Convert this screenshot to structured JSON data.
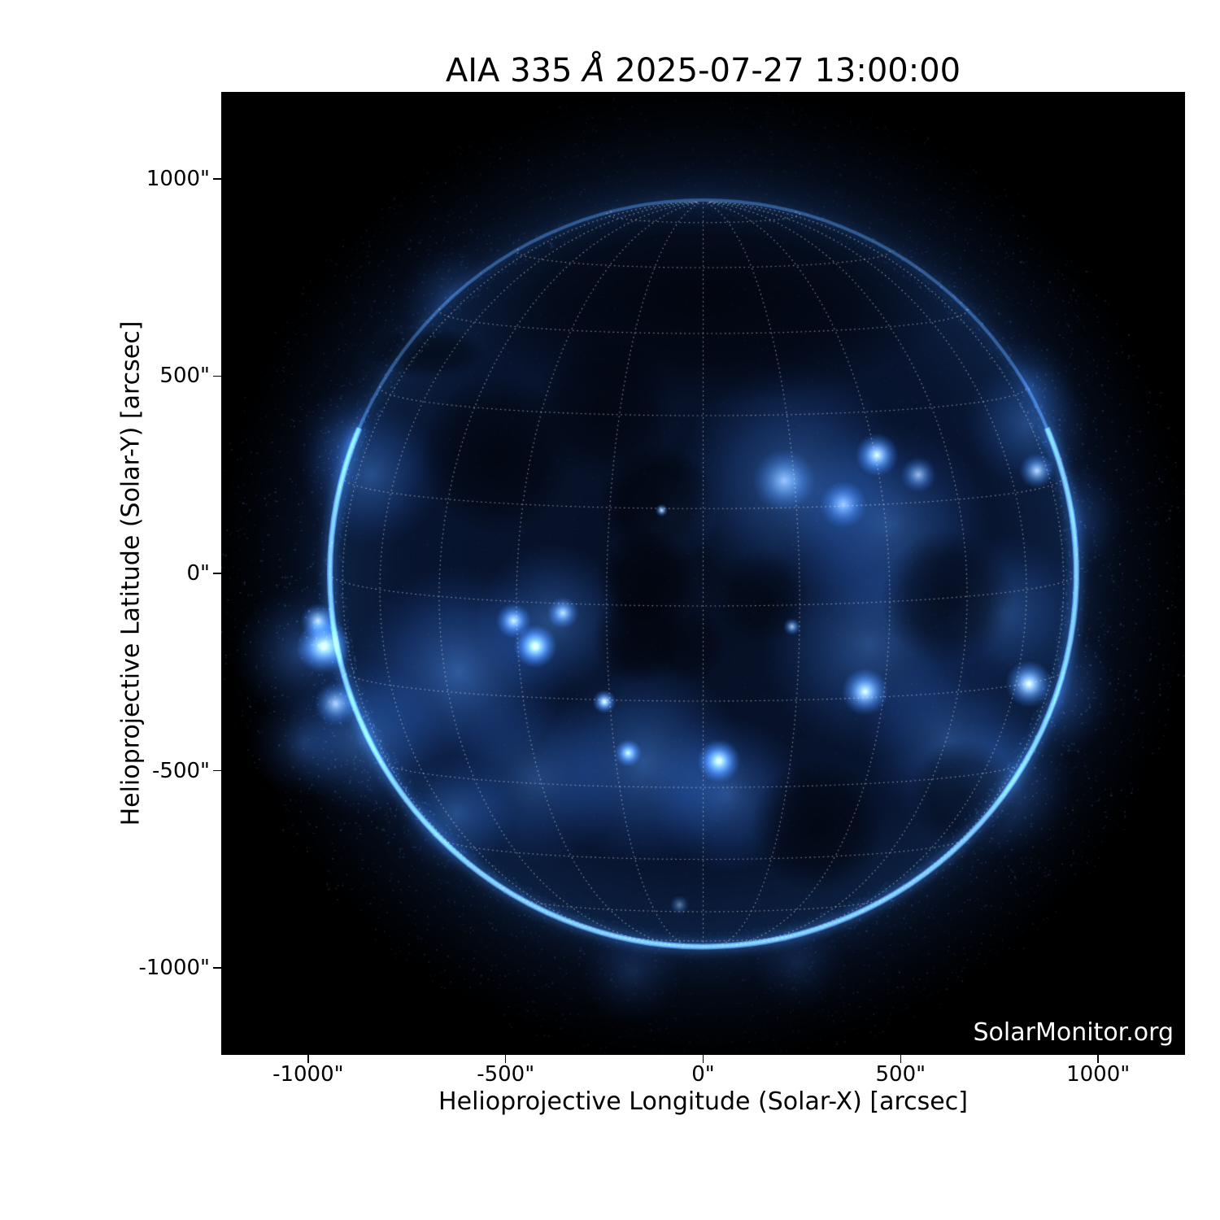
{
  "title": {
    "prefix": "AIA 335 ",
    "angstrom": "Å",
    "suffix": " 2025-07-27 13:00:00",
    "full": "AIA 335 Å 2025-07-27 13:00:00"
  },
  "watermark": "SolarMonitor.org",
  "axes": {
    "xlabel": "Helioprojective Longitude (Solar-X) [arcsec]",
    "ylabel": "Helioprojective Latitude (Solar-Y) [arcsec]",
    "xlim": [
      -1220,
      1220
    ],
    "ylim": [
      -1220,
      1220
    ],
    "xticks": [
      {
        "v": -1000,
        "label": "-1000\""
      },
      {
        "v": -500,
        "label": "-500\""
      },
      {
        "v": 0,
        "label": "0\""
      },
      {
        "v": 500,
        "label": "500\""
      },
      {
        "v": 1000,
        "label": "1000\""
      }
    ],
    "yticks": [
      {
        "v": 1000,
        "label": "1000\""
      },
      {
        "v": 500,
        "label": "500\""
      },
      {
        "v": 0,
        "label": "0\""
      },
      {
        "v": -500,
        "label": "-500\""
      },
      {
        "v": -1000,
        "label": "-1000\""
      }
    ]
  },
  "chart_data": {
    "type": "heatmap",
    "description": "SDO/AIA 335 Å extreme-ultraviolet image of the solar corona (blue colormap) with dotted heliographic Stonyhurst grid overlay, as served by SolarMonitor.org",
    "instrument": "AIA",
    "wavelength_label": "335 Å",
    "observation_time": "2025-07-27 13:00:00",
    "sun": {
      "center_arcsec": [
        0,
        0
      ],
      "radius_arcsec": 945,
      "b0_deg": 5,
      "grid_step_deg": 15
    },
    "palette": {
      "background": "#000000",
      "disk_dark": "#060f22",
      "corona_faint": "#123a6e",
      "corona_mid": "#2e6aa8",
      "corona_bright": "#8fc0e8",
      "core_white": "#f0f8ff",
      "grid": "#ffffff",
      "text": "#000000",
      "watermark_text": "#ffffff"
    },
    "clouds": [
      {
        "x": -620,
        "y": -250,
        "r": 270,
        "a": 0.55
      },
      {
        "x": -380,
        "y": -120,
        "r": 200,
        "a": 0.45
      },
      {
        "x": -150,
        "y": -480,
        "r": 260,
        "a": 0.5
      },
      {
        "x": -420,
        "y": -520,
        "r": 220,
        "a": 0.4
      },
      {
        "x": 60,
        "y": -560,
        "r": 200,
        "a": 0.45
      },
      {
        "x": 230,
        "y": 230,
        "r": 300,
        "a": 0.5
      },
      {
        "x": 470,
        "y": 120,
        "r": 260,
        "a": 0.45
      },
      {
        "x": 420,
        "y": -180,
        "r": 280,
        "a": 0.45
      },
      {
        "x": 620,
        "y": -420,
        "r": 220,
        "a": 0.4
      },
      {
        "x": 760,
        "y": -100,
        "r": 200,
        "a": 0.4
      },
      {
        "x": 760,
        "y": -540,
        "r": 180,
        "a": 0.35
      },
      {
        "x": -840,
        "y": 250,
        "r": 180,
        "a": 0.4
      },
      {
        "x": -860,
        "y": -420,
        "r": 200,
        "a": 0.45
      },
      {
        "x": 820,
        "y": 380,
        "r": 160,
        "a": 0.35
      },
      {
        "x": -80,
        "y": 150,
        "r": 120,
        "a": 0.3
      },
      {
        "x": -625,
        "y": -608,
        "r": 150,
        "a": 0.4
      }
    ],
    "active_regions": [
      {
        "x": -960,
        "y": -185,
        "r": 70,
        "i": 1.0
      },
      {
        "x": -975,
        "y": -120,
        "r": 45,
        "i": 0.8
      },
      {
        "x": -930,
        "y": -330,
        "r": 55,
        "i": 0.7
      },
      {
        "x": -425,
        "y": -185,
        "r": 55,
        "i": 1.0
      },
      {
        "x": -480,
        "y": -120,
        "r": 45,
        "i": 0.8
      },
      {
        "x": -355,
        "y": -100,
        "r": 40,
        "i": 0.7
      },
      {
        "x": -250,
        "y": -325,
        "r": 30,
        "i": 1.0
      },
      {
        "x": -190,
        "y": -455,
        "r": 35,
        "i": 0.8
      },
      {
        "x": 40,
        "y": -475,
        "r": 55,
        "i": 0.95
      },
      {
        "x": -105,
        "y": 160,
        "r": 16,
        "i": 0.9
      },
      {
        "x": 205,
        "y": 235,
        "r": 80,
        "i": 0.5
      },
      {
        "x": 355,
        "y": 175,
        "r": 60,
        "i": 0.55
      },
      {
        "x": 440,
        "y": 300,
        "r": 55,
        "i": 0.9
      },
      {
        "x": 545,
        "y": 250,
        "r": 45,
        "i": 0.6
      },
      {
        "x": 410,
        "y": -300,
        "r": 60,
        "i": 0.9
      },
      {
        "x": 225,
        "y": -135,
        "r": 22,
        "i": 0.7
      },
      {
        "x": 825,
        "y": -280,
        "r": 60,
        "i": 1.0
      },
      {
        "x": 845,
        "y": 260,
        "r": 45,
        "i": 0.75
      },
      {
        "x": -60,
        "y": -840,
        "r": 25,
        "i": 0.4
      }
    ],
    "dark_regions": [
      {
        "x": 0,
        "y": 700,
        "r": 420,
        "a": 0.85,
        "sx": 1.5,
        "sy": 0.65
      },
      {
        "x": -120,
        "y": 180,
        "r": 150,
        "a": 0.8,
        "sx": 1,
        "sy": 1
      },
      {
        "x": -140,
        "y": -20,
        "r": 130,
        "a": 0.8,
        "sx": 1,
        "sy": 1
      },
      {
        "x": -160,
        "y": -160,
        "r": 120,
        "a": 0.7,
        "sx": 1,
        "sy": 1
      },
      {
        "x": -520,
        "y": 300,
        "r": 200,
        "a": 0.75,
        "sx": 1,
        "sy": 1
      },
      {
        "x": -250,
        "y": 420,
        "r": 180,
        "a": 0.7,
        "sx": 1,
        "sy": 1
      },
      {
        "x": 290,
        "y": -640,
        "r": 170,
        "a": 0.7,
        "sx": 1,
        "sy": 1
      },
      {
        "x": 620,
        "y": -60,
        "r": 170,
        "a": 0.65,
        "sx": 1,
        "sy": 1
      },
      {
        "x": 660,
        "y": -560,
        "r": 140,
        "a": 0.6,
        "sx": 1,
        "sy": 1
      },
      {
        "x": 150,
        "y": -60,
        "r": 120,
        "a": 0.5,
        "sx": 1,
        "sy": 1
      },
      {
        "x": -700,
        "y": 560,
        "r": 110,
        "a": 0.6,
        "sx": 1.4,
        "sy": 0.6
      },
      {
        "x": -40,
        "y": -180,
        "r": 100,
        "a": 0.5,
        "sx": 1,
        "sy": 1
      }
    ],
    "outer_glows": [
      {
        "x": -1020,
        "y": -200,
        "r": 170,
        "a": 0.5
      },
      {
        "x": -1010,
        "y": -430,
        "r": 140,
        "a": 0.4
      },
      {
        "x": -890,
        "y": 330,
        "r": 150,
        "a": 0.35
      },
      {
        "x": -640,
        "y": 700,
        "r": 130,
        "a": 0.25
      },
      {
        "x": 880,
        "y": -300,
        "r": 170,
        "a": 0.5
      },
      {
        "x": 930,
        "y": 140,
        "r": 140,
        "a": 0.35
      },
      {
        "x": 820,
        "y": 470,
        "r": 130,
        "a": 0.3
      },
      {
        "x": -180,
        "y": -1010,
        "r": 130,
        "a": 0.25
      },
      {
        "x": 240,
        "y": -990,
        "r": 120,
        "a": 0.2
      }
    ]
  }
}
